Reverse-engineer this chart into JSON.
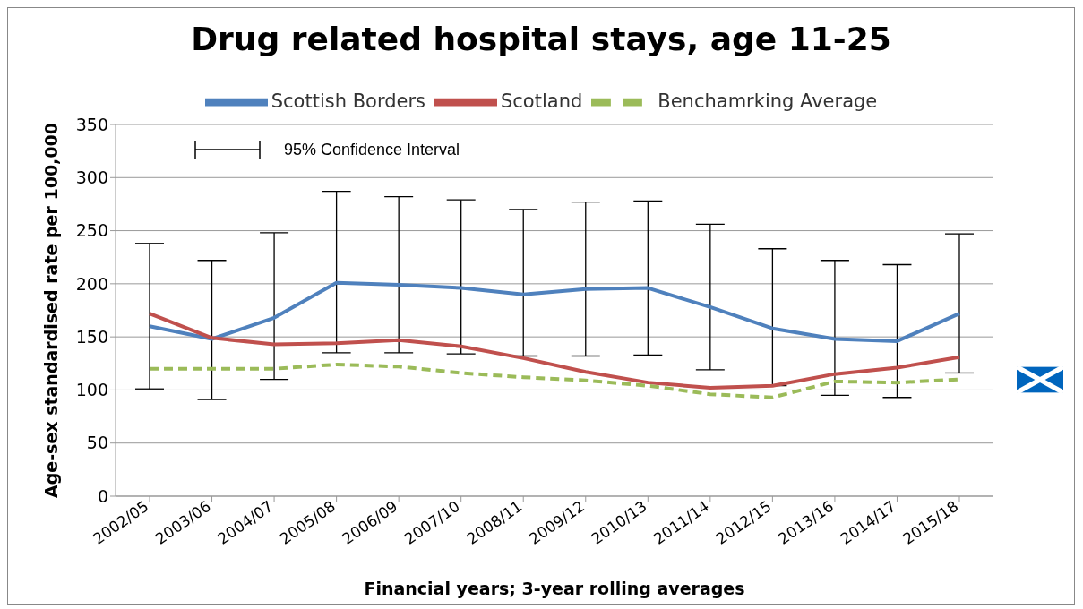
{
  "chart_data": {
    "type": "line",
    "title": "Drug related hospital stays, age 11-25",
    "xlabel": "Financial years; 3-year rolling averages",
    "ylabel": "Age-sex standardised  rate per 100,000",
    "categories": [
      "2002/05",
      "2003/06",
      "2004/07",
      "2005/08",
      "2006/09",
      "2007/10",
      "2008/11",
      "2009/12",
      "2010/13",
      "2011/14",
      "2012/15",
      "2013/16",
      "2014/17",
      "2015/18"
    ],
    "series": [
      {
        "name": "Scottish Borders",
        "color": "#4f81bd",
        "line_style": "solid",
        "values": [
          160,
          148,
          168,
          201,
          199,
          196,
          190,
          195,
          196,
          178,
          158,
          148,
          146,
          172
        ],
        "errors": [
          [
            101,
            238
          ],
          [
            91,
            222
          ],
          [
            110,
            248
          ],
          [
            135,
            287
          ],
          [
            135,
            282
          ],
          [
            134,
            279
          ],
          [
            132,
            270
          ],
          [
            132,
            277
          ],
          [
            133,
            278
          ],
          [
            119,
            256
          ],
          [
            104,
            233
          ],
          [
            95,
            222
          ],
          [
            93,
            218
          ],
          [
            116,
            247
          ]
        ]
      },
      {
        "name": "Scotland",
        "color": "#c0504d",
        "line_style": "solid",
        "values": [
          172,
          149,
          143,
          144,
          147,
          141,
          130,
          117,
          107,
          102,
          104,
          115,
          121,
          131
        ]
      },
      {
        "name": "Benchamrking Average",
        "color": "#9bbb59",
        "line_style": "dashed",
        "values": [
          120,
          120,
          120,
          124,
          122,
          116,
          112,
          109,
          104,
          96,
          93,
          108,
          107,
          110
        ]
      }
    ],
    "annotations": [
      "95% Confidence Interval"
    ],
    "ylim": [
      0,
      350
    ],
    "yticks": [
      0,
      50,
      100,
      150,
      200,
      250,
      300,
      350
    ],
    "grid": "y",
    "legend": "top",
    "marker": "none"
  }
}
